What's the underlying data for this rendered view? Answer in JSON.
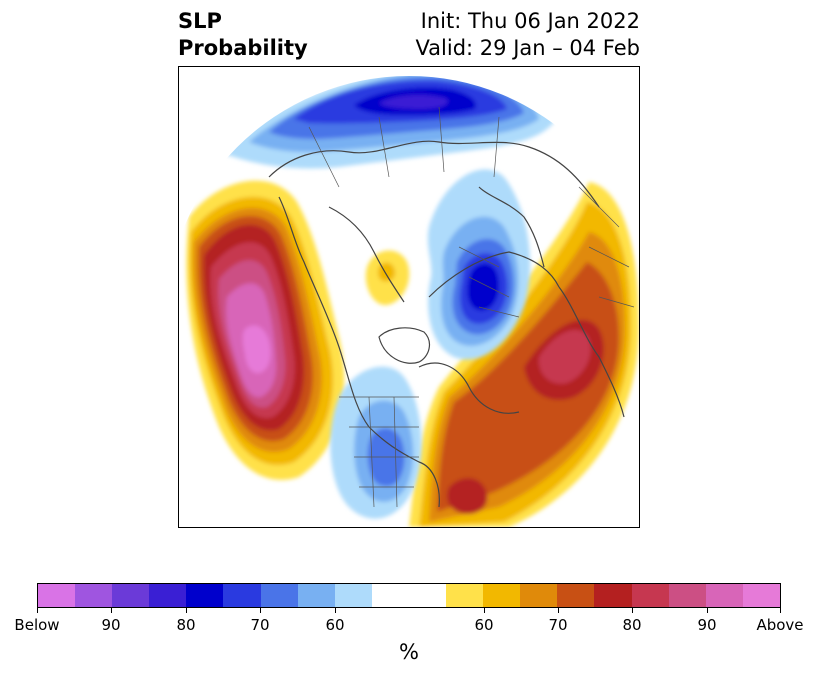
{
  "title": {
    "variable": "SLP",
    "product": "Probability",
    "init": "Init: Thu 06 Jan 2022",
    "valid": "Valid: 29 Jan – 04 Feb"
  },
  "map": {
    "projection": "north-polar-stereographic",
    "features": [
      "coastlines",
      "country-borders",
      "US-state-borders"
    ],
    "below_normal_regions": [
      "northern Eurasia / Siberia",
      "Scandinavia / northwestern Russia",
      "central United States"
    ],
    "above_normal_regions": [
      "northeast Pacific / Gulf of Alaska",
      "North Atlantic",
      "Arctic Ocean (small patch)"
    ]
  },
  "colorbar": {
    "unit": "%",
    "tick_labels": [
      "Below",
      "90",
      "80",
      "70",
      "60",
      "60",
      "70",
      "80",
      "90",
      "Above"
    ],
    "colors": [
      "#d973e6",
      "#9f55e0",
      "#6b3ad8",
      "#3a1fd4",
      "#0000cc",
      "#2a3ae0",
      "#4a74e8",
      "#78b0f2",
      "#aedbfb",
      "#ffffff",
      "#ffffff",
      "#ffe14a",
      "#f2b800",
      "#e08a0a",
      "#c85014",
      "#b42020",
      "#c63750",
      "#cc4f84",
      "#d865b8",
      "#e67ad8"
    ]
  }
}
